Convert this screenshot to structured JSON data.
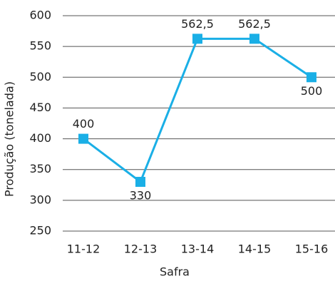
{
  "chart_data": {
    "type": "line",
    "x_label": "Safra",
    "y_label": "Produção (tonelada)",
    "categories": [
      "11-12",
      "12-13",
      "13-14",
      "14-15",
      "15-16"
    ],
    "series": [
      {
        "name": "Produção",
        "color": "#1aafe6",
        "values": [
          400,
          330,
          562.5,
          562.5,
          500
        ],
        "value_labels": [
          "400",
          "330",
          "562,5",
          "562,5",
          "500"
        ]
      }
    ],
    "ylim": [
      250,
      600
    ],
    "yticks": [
      250,
      300,
      350,
      400,
      450,
      500,
      550,
      600
    ],
    "grid": true
  }
}
